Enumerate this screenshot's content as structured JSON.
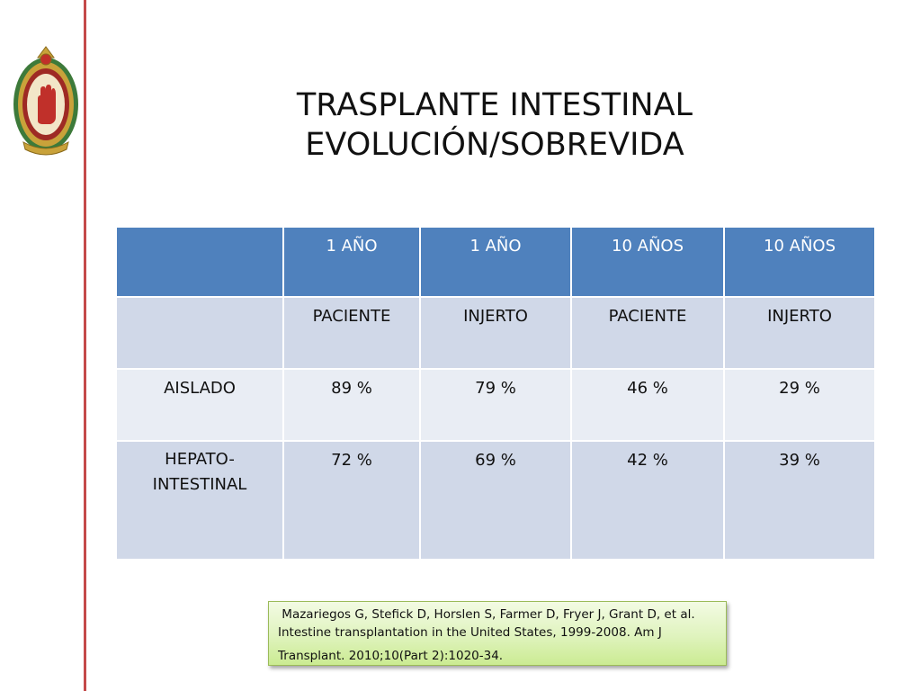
{
  "title": {
    "line1": "TRASPLANTE INTESTINAL",
    "line2": "EVOLUCIÓN/SOBREVIDA"
  },
  "logo": {
    "icon": "university-crest-icon",
    "colors": {
      "gold": "#c9a23a",
      "red": "#c0302a",
      "green": "#3d7a3a"
    }
  },
  "table": {
    "header": [
      "",
      "1 AÑO",
      "1 AÑO",
      "10 AÑOS",
      "10 AÑOS"
    ],
    "subheader": [
      "",
      "PACIENTE",
      "INJERTO",
      "PACIENTE",
      "INJERTO"
    ],
    "rows": [
      {
        "label": [
          "AISLADO"
        ],
        "values": [
          "89 %",
          "79 %",
          "46 %",
          "29 %"
        ]
      },
      {
        "label": [
          "HEPATO-",
          "INTESTINAL"
        ],
        "values": [
          "72 %",
          "69 %",
          "42 %",
          "39 %"
        ]
      }
    ],
    "colors": {
      "header": "#4f81bd",
      "band_dark": "#d0d8e8",
      "band_light": "#e9edf4"
    }
  },
  "citation": {
    "line1": " Mazariegos G, Stefick D, Horslen S, Farmer D, Fryer J, Grant D, et al.",
    "line2": "Intestine transplantation in the United States, 1999-2008. Am J",
    "line3": "Transplant. 2010;10(Part 2):1020-34."
  },
  "accent_line_color": "#c44a4a"
}
